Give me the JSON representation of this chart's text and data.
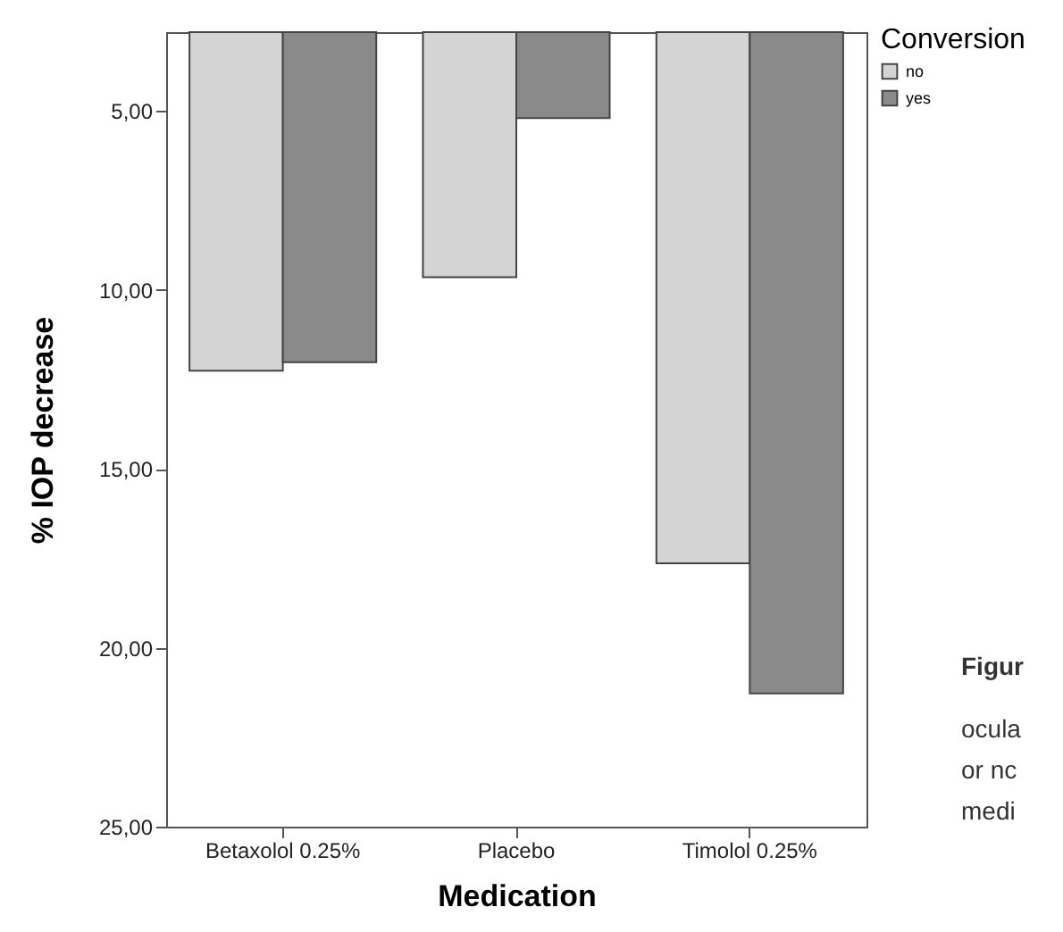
{
  "chart_data": {
    "type": "bar",
    "xlabel": "Medication",
    "ylabel": "% IOP decrease",
    "legend_title": "Conversion",
    "categories": [
      "Betaxolol 0.25%",
      "Placebo",
      "Timolol 0.25%"
    ],
    "series": [
      {
        "name": "no",
        "color": "#d4d4d4",
        "values": [
          12.26,
          9.65,
          17.64
        ]
      },
      {
        "name": "yes",
        "color": "#8a8a8a",
        "values": [
          12.02,
          5.2,
          21.28
        ]
      }
    ],
    "ylim": [
      25,
      2.8
    ],
    "yticks": [
      {
        "value": 5,
        "label": "5,00"
      },
      {
        "value": 10,
        "label": "10,00"
      },
      {
        "value": 15,
        "label": "15,00"
      },
      {
        "value": 20,
        "label": "20,00"
      },
      {
        "value": 25,
        "label": "25,00"
      }
    ],
    "grid": false,
    "legend": "top right",
    "annotations": [
      "Figur",
      "ocula",
      "or nc",
      "medi"
    ]
  }
}
